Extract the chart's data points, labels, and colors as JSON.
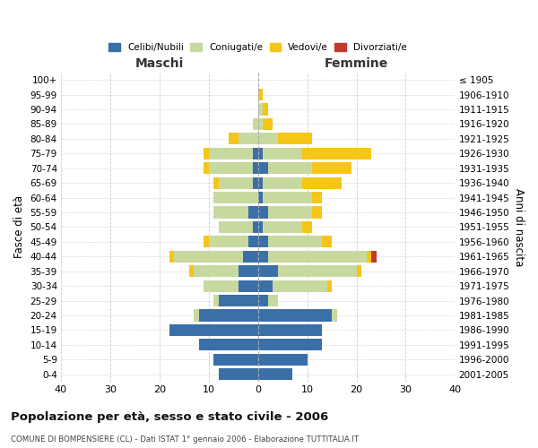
{
  "age_groups": [
    "0-4",
    "5-9",
    "10-14",
    "15-19",
    "20-24",
    "25-29",
    "30-34",
    "35-39",
    "40-44",
    "45-49",
    "50-54",
    "55-59",
    "60-64",
    "65-69",
    "70-74",
    "75-79",
    "80-84",
    "85-89",
    "90-94",
    "95-99",
    "100+"
  ],
  "birth_years": [
    "2001-2005",
    "1996-2000",
    "1991-1995",
    "1986-1990",
    "1981-1985",
    "1976-1980",
    "1971-1975",
    "1966-1970",
    "1961-1965",
    "1956-1960",
    "1951-1955",
    "1946-1950",
    "1941-1945",
    "1936-1940",
    "1931-1935",
    "1926-1930",
    "1921-1925",
    "1916-1920",
    "1911-1915",
    "1906-1910",
    "≤ 1905"
  ],
  "maschi": {
    "celibi": [
      8,
      9,
      12,
      18,
      12,
      8,
      4,
      4,
      3,
      2,
      1,
      2,
      0,
      1,
      1,
      1,
      0,
      0,
      0,
      0,
      0
    ],
    "coniugati": [
      0,
      0,
      0,
      0,
      1,
      1,
      7,
      9,
      14,
      8,
      7,
      7,
      9,
      7,
      9,
      9,
      4,
      1,
      0,
      0,
      0
    ],
    "vedovi": [
      0,
      0,
      0,
      0,
      0,
      0,
      0,
      1,
      1,
      1,
      0,
      0,
      0,
      1,
      1,
      1,
      2,
      0,
      0,
      0,
      0
    ],
    "divorziati": [
      0,
      0,
      0,
      0,
      0,
      0,
      0,
      0,
      0,
      0,
      0,
      0,
      0,
      0,
      0,
      0,
      0,
      0,
      0,
      0,
      0
    ]
  },
  "femmine": {
    "nubili": [
      7,
      10,
      13,
      13,
      15,
      2,
      3,
      4,
      2,
      2,
      1,
      2,
      1,
      1,
      2,
      1,
      0,
      0,
      0,
      0,
      0
    ],
    "coniugate": [
      0,
      0,
      0,
      0,
      1,
      2,
      11,
      16,
      20,
      11,
      8,
      9,
      10,
      8,
      9,
      8,
      4,
      1,
      1,
      0,
      0
    ],
    "vedove": [
      0,
      0,
      0,
      0,
      0,
      0,
      1,
      1,
      1,
      2,
      2,
      2,
      2,
      8,
      8,
      14,
      7,
      2,
      1,
      1,
      0
    ],
    "divorziate": [
      0,
      0,
      0,
      0,
      0,
      0,
      0,
      0,
      1,
      0,
      0,
      0,
      0,
      0,
      0,
      0,
      0,
      0,
      0,
      0,
      0
    ]
  },
  "colors": {
    "celibi": "#3a6fa8",
    "coniugati": "#c8d9a0",
    "vedovi": "#f5c518",
    "divorziati": "#c0392b"
  },
  "xlim": 40,
  "title": "Popolazione per età, sesso e stato civile - 2006",
  "subtitle": "COMUNE DI BOMPENSIERE (CL) - Dati ISTAT 1° gennaio 2006 - Elaborazione TUTTITALIA.IT",
  "ylabel_left": "Fasce di età",
  "ylabel_right": "Anni di nascita",
  "xlabel_maschi": "Maschi",
  "xlabel_femmine": "Femmine"
}
